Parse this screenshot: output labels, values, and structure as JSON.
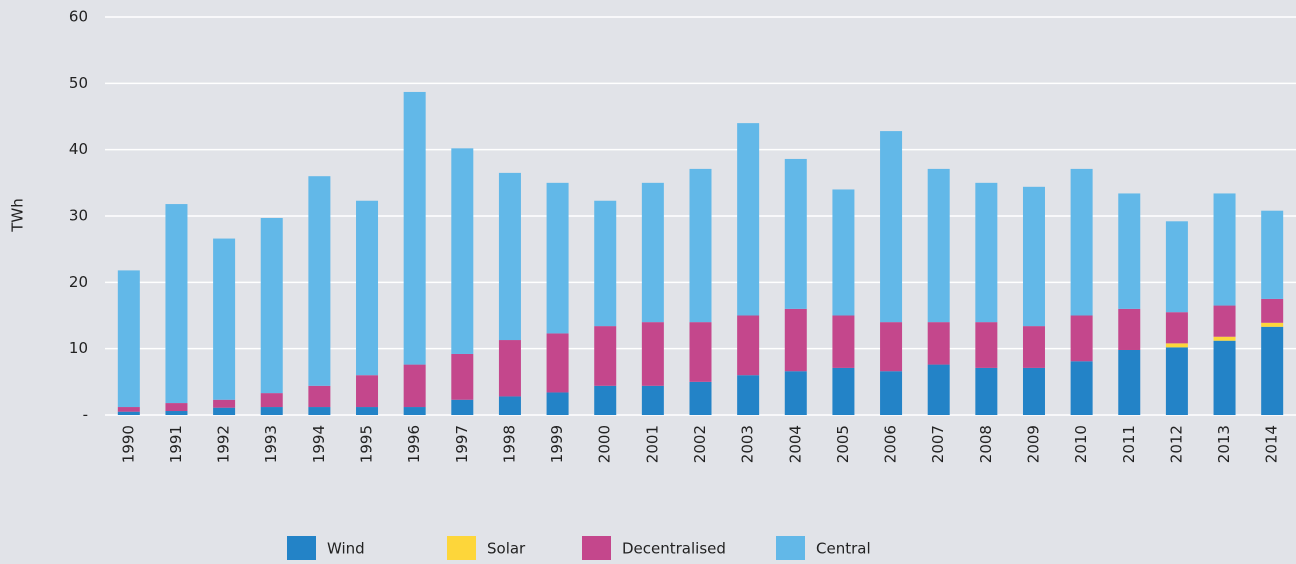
{
  "chart_data": {
    "type": "stacked_bar",
    "y_label": "TWh",
    "categories": [
      "1990",
      "1991",
      "1992",
      "1993",
      "1994",
      "1995",
      "1996",
      "1997",
      "1998",
      "1999",
      "2000",
      "2001",
      "2002",
      "2003",
      "2004",
      "2005",
      "2006",
      "2007",
      "2008",
      "2009",
      "2010",
      "2011",
      "2012",
      "2013",
      "2014"
    ],
    "series": [
      {
        "name": "Wind",
        "color": "#2383c7",
        "values": [
          0.5,
          0.6,
          1.1,
          1.2,
          1.2,
          1.2,
          1.2,
          2.3,
          2.8,
          3.4,
          4.4,
          4.4,
          5.0,
          6.0,
          6.6,
          7.1,
          6.6,
          7.6,
          7.1,
          7.1,
          8.1,
          9.8,
          10.2,
          11.2,
          13.3
        ]
      },
      {
        "name": "Solar",
        "color": "#fdd63a",
        "values": [
          0,
          0,
          0,
          0,
          0,
          0,
          0,
          0,
          0,
          0,
          0,
          0,
          0,
          0,
          0,
          0,
          0,
          0,
          0,
          0,
          0,
          0,
          0.6,
          0.6,
          0.6
        ]
      },
      {
        "name": "Decentralised",
        "color": "#c4478c",
        "values": [
          0.7,
          1.2,
          1.2,
          2.1,
          3.2,
          4.8,
          6.4,
          6.9,
          8.5,
          8.9,
          9.0,
          9.6,
          9.0,
          9.0,
          9.4,
          7.9,
          7.4,
          6.4,
          6.9,
          6.3,
          6.9,
          6.2,
          4.7,
          4.7,
          3.6
        ]
      },
      {
        "name": "Central",
        "color": "#62b8e8",
        "values": [
          20.6,
          30.0,
          24.3,
          26.4,
          31.6,
          26.3,
          41.1,
          31.0,
          25.2,
          22.7,
          18.9,
          21.0,
          23.1,
          29.0,
          22.6,
          19.0,
          28.8,
          23.1,
          21.0,
          21.0,
          22.1,
          17.4,
          13.7,
          16.9,
          13.3
        ]
      }
    ],
    "ylim": [
      0,
      60
    ],
    "yticks": [
      {
        "value": 0,
        "label": "-"
      },
      10,
      20,
      30,
      40,
      50,
      60
    ],
    "grid": true,
    "legend": "bottom"
  }
}
